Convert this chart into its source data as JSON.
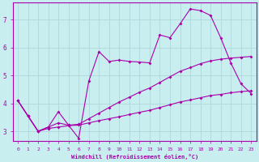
{
  "xlabel": "Windchill (Refroidissement éolien,°C)",
  "bg_color": "#c8eef0",
  "grid_color": "#b0d8dc",
  "line_color": "#aa00aa",
  "xlim": [
    -0.5,
    23.5
  ],
  "ylim": [
    2.65,
    7.6
  ],
  "xticks": [
    0,
    1,
    2,
    3,
    4,
    5,
    6,
    7,
    8,
    9,
    10,
    11,
    12,
    13,
    14,
    15,
    16,
    17,
    18,
    19,
    20,
    21,
    22,
    23
  ],
  "yticks": [
    3,
    4,
    5,
    6,
    7
  ],
  "line1_x": [
    0,
    1,
    2,
    3,
    4,
    5,
    6,
    7,
    8,
    9,
    10,
    11,
    12,
    13,
    14,
    15,
    16,
    17,
    18,
    19,
    20,
    21,
    22,
    23
  ],
  "line1_y": [
    4.1,
    3.55,
    3.0,
    3.1,
    3.15,
    3.2,
    3.22,
    3.3,
    3.38,
    3.45,
    3.52,
    3.6,
    3.68,
    3.75,
    3.85,
    3.95,
    4.05,
    4.12,
    4.2,
    4.28,
    4.32,
    4.38,
    4.42,
    4.45
  ],
  "line2_x": [
    0,
    1,
    2,
    3,
    4,
    5,
    6,
    7,
    8,
    9,
    10,
    11,
    12,
    13,
    14,
    15,
    16,
    17,
    18,
    19,
    20,
    21,
    22,
    23
  ],
  "line2_y": [
    4.1,
    3.55,
    3.0,
    3.15,
    3.3,
    3.22,
    3.25,
    3.45,
    3.65,
    3.85,
    4.05,
    4.22,
    4.4,
    4.55,
    4.75,
    4.95,
    5.15,
    5.28,
    5.42,
    5.52,
    5.58,
    5.62,
    5.65,
    5.68
  ],
  "line3_x": [
    0,
    1,
    2,
    3,
    4,
    5,
    6,
    7,
    8,
    9,
    10,
    11,
    12,
    13,
    14,
    15,
    16,
    17,
    18,
    19,
    20,
    21,
    22,
    23
  ],
  "line3_y": [
    4.1,
    3.55,
    3.0,
    3.15,
    3.7,
    3.22,
    2.75,
    4.8,
    5.85,
    5.5,
    5.55,
    5.5,
    5.48,
    5.45,
    6.45,
    6.35,
    6.85,
    7.38,
    7.32,
    7.15,
    6.35,
    5.45,
    4.7,
    4.35
  ]
}
